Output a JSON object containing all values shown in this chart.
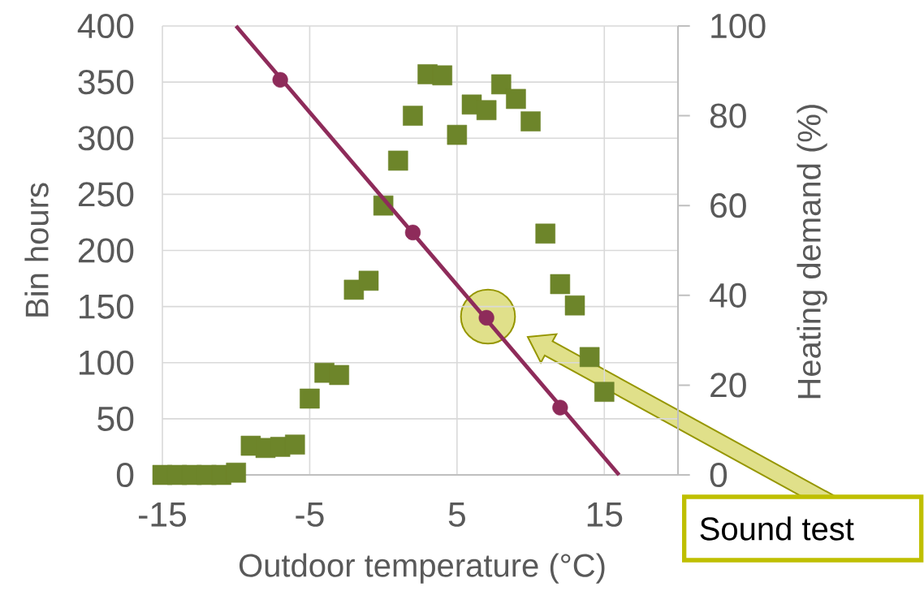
{
  "chart_data": {
    "type": "scatter",
    "xlabel": "Outdoor temperature (°C)",
    "ylabel": "Bin hours",
    "y2label": "Heating demand (%)",
    "x": [
      -15,
      -14,
      -13,
      -12,
      -11,
      -10,
      -9,
      -8,
      -7,
      -6,
      -5,
      -4,
      -3,
      -2,
      -1,
      0,
      1,
      2,
      3,
      4,
      5,
      6,
      7,
      8,
      9,
      10,
      11,
      12,
      13,
      14,
      15
    ],
    "series": [
      {
        "color": "#6d852a",
        "marker": "square",
        "values": [
          0,
          0,
          0,
          0,
          0,
          2,
          26,
          24,
          25,
          27,
          68,
          91,
          89,
          165,
          173,
          240,
          280,
          320,
          357,
          356,
          303,
          330,
          325,
          348,
          335,
          315,
          215,
          170,
          151,
          105,
          74
        ]
      },
      {
        "type": "line",
        "axis": "y2",
        "color": "#8e2b5a",
        "marker": "none",
        "x": [
          -10,
          16
        ],
        "values": [
          100,
          0
        ]
      },
      {
        "type": "scatter",
        "axis": "y2",
        "color": "#8e2b5a",
        "marker": "circle",
        "x": [
          -7,
          2,
          7,
          12
        ],
        "values": [
          88,
          54,
          35,
          15
        ]
      }
    ],
    "xlim": [
      -15,
      20
    ],
    "xticks": [
      -15,
      -5,
      5,
      15
    ],
    "ylim": [
      0,
      400
    ],
    "yticks": [
      0,
      50,
      100,
      150,
      200,
      250,
      300,
      350,
      400
    ],
    "y2lim": [
      0,
      100
    ],
    "y2ticks": [
      0,
      20,
      40,
      60,
      80,
      100
    ],
    "grid": true,
    "annotations": [
      "Sound test"
    ]
  }
}
